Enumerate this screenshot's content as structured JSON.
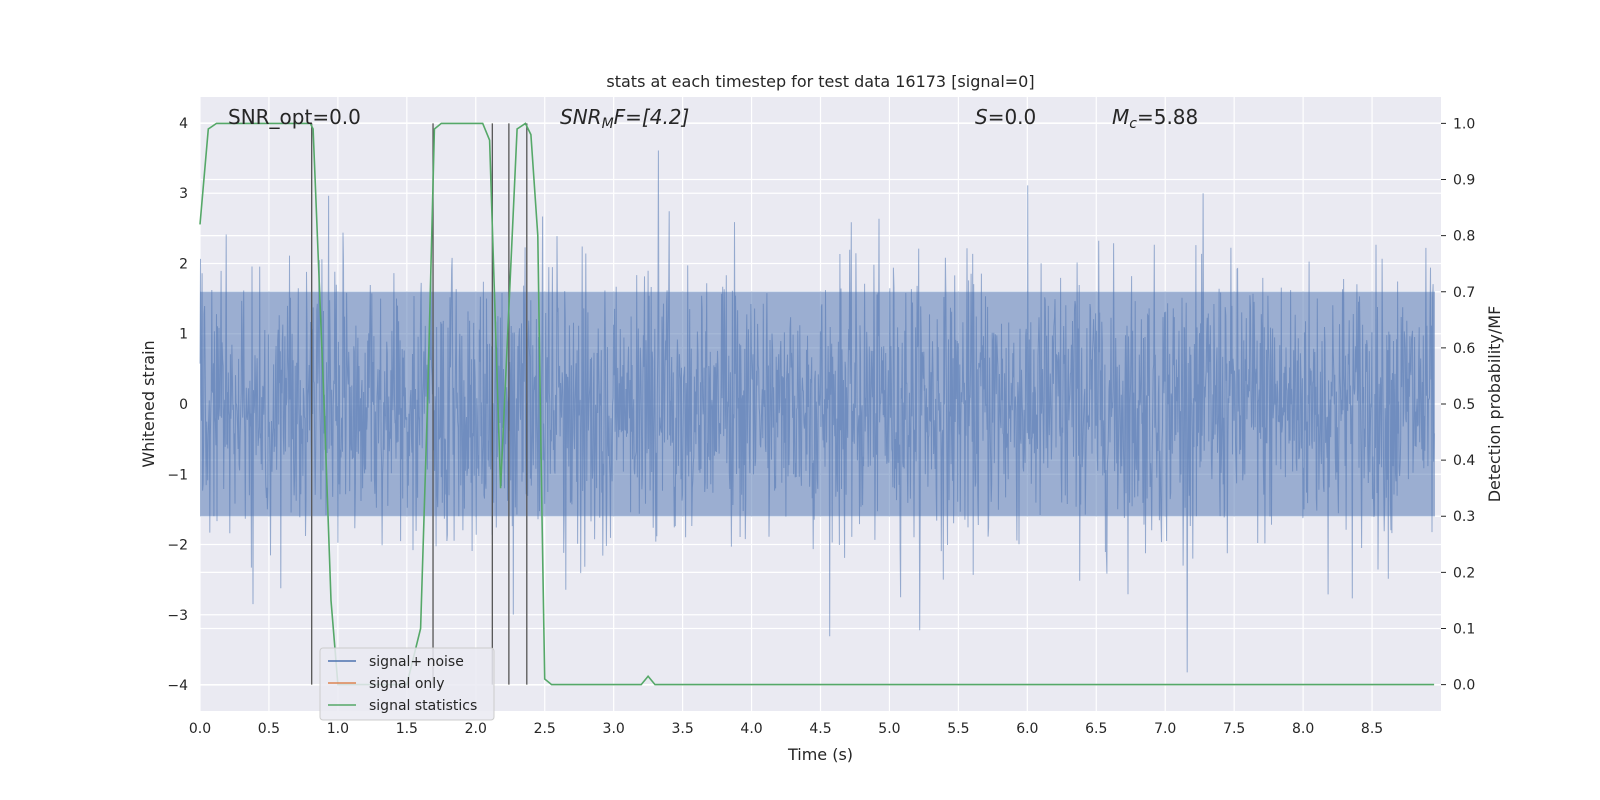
{
  "chart_data": {
    "type": "line",
    "title": "stats at each timestep for test data 16173 [signal=0]",
    "xlabel": "Time (s)",
    "ylabel": "Whitened strain",
    "y2label": "Detection probability/MF",
    "xlim": [
      0.0,
      9.0
    ],
    "ylim": [
      -4.37,
      4.37
    ],
    "y2lim": [
      -0.047,
      1.047
    ],
    "xticks": [
      "0.0",
      "0.5",
      "1.0",
      "1.5",
      "2.0",
      "2.5",
      "3.0",
      "3.5",
      "4.0",
      "4.5",
      "5.0",
      "5.5",
      "6.0",
      "6.5",
      "7.0",
      "7.5",
      "8.0",
      "8.5"
    ],
    "yticks": [
      "4",
      "3",
      "2",
      "1",
      "0",
      "−1",
      "−2",
      "−3",
      "−4"
    ],
    "y2ticks": [
      "1.0",
      "0.9",
      "0.8",
      "0.7",
      "0.6",
      "0.5",
      "0.4",
      "0.3",
      "0.2",
      "0.1",
      "0.0"
    ],
    "grid": true,
    "legend_position": "lower-left",
    "legend": [
      "signal+ noise",
      "signal only",
      "signal statistics"
    ],
    "colors": {
      "noise": "#4c72b0",
      "signal": "#dd8452",
      "stats": "#55a868",
      "vlines": "#555555",
      "background": "#eaeaf2"
    },
    "annotations": {
      "snr_opt": "SNR_opt=0.0",
      "snr_mf_base": "SNR",
      "snr_mf_sub": "M",
      "snr_mf_rest": "F=[4.2]",
      "s_var": "S",
      "s_rest": "=0.0",
      "mc_var": "M",
      "mc_sub": "c",
      "mc_rest": "=5.88"
    },
    "noise_envelope": {
      "band_max": 1.6,
      "band_min": -1.6,
      "peak_max": 4.0,
      "peak_min": -4.0
    },
    "vertical_markers_x": [
      0.81,
      1.69,
      2.12,
      2.24,
      2.37
    ],
    "series": [
      {
        "name": "signal+ noise",
        "note": "whitened noise, amplitude ~±2.5 with spikes to ±4"
      },
      {
        "name": "signal only",
        "x": [],
        "y": []
      },
      {
        "name": "signal statistics",
        "x": [
          0.0,
          0.06,
          0.12,
          0.3,
          0.5,
          0.7,
          0.8,
          0.82,
          0.9,
          0.95,
          1.0,
          1.1,
          1.2,
          1.3,
          1.4,
          1.5,
          1.6,
          1.65,
          1.7,
          1.75,
          2.0,
          2.05,
          2.1,
          2.18,
          2.3,
          2.36,
          2.4,
          2.45,
          2.48,
          2.5,
          2.55,
          2.6,
          3.0,
          3.15,
          3.2,
          3.25,
          3.3,
          3.35,
          4.0,
          5.0,
          6.0,
          7.0,
          8.0,
          8.95
        ],
        "y": [
          0.82,
          0.99,
          1.0,
          1.0,
          1.0,
          1.0,
          1.0,
          0.99,
          0.5,
          0.15,
          0.0,
          0.0,
          0.0,
          0.0,
          0.0,
          0.0,
          0.1,
          0.5,
          0.99,
          1.0,
          1.0,
          1.0,
          0.97,
          0.35,
          0.99,
          1.0,
          0.98,
          0.8,
          0.3,
          0.01,
          0.0,
          0.0,
          0.0,
          0.0,
          0.0,
          0.015,
          0.0,
          0.0,
          0.0,
          0.0,
          0.0,
          0.0,
          0.0,
          0.0
        ]
      }
    ]
  }
}
